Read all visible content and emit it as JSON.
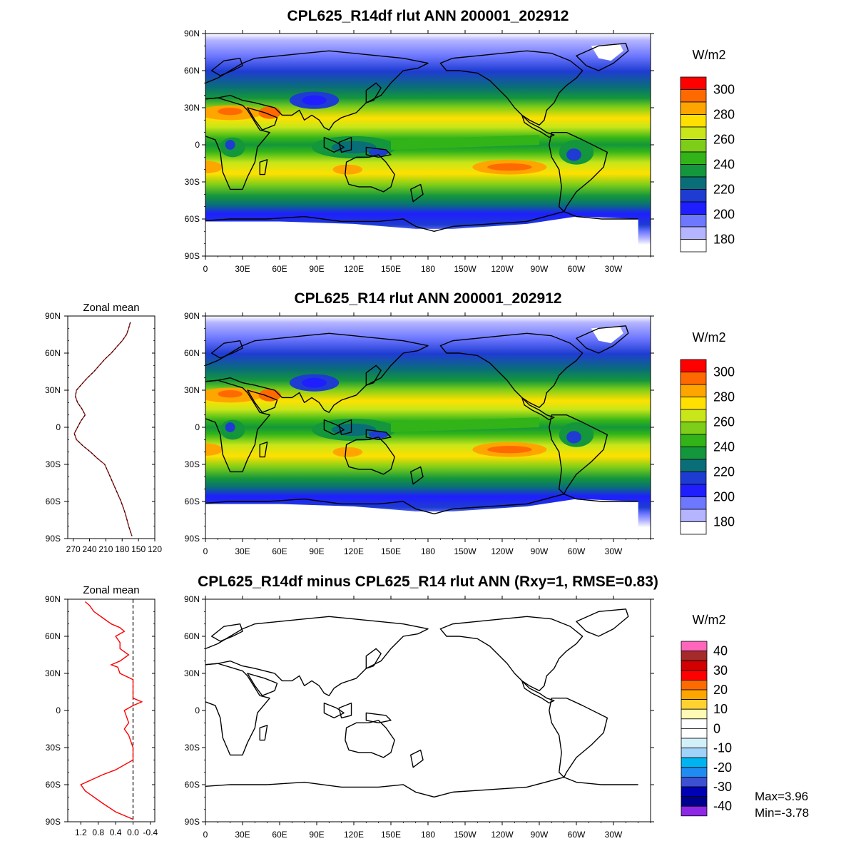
{
  "panels": [
    {
      "id": "top",
      "title": "CPL625_R14df rlut ANN 200001_202912",
      "units": "W/m2",
      "colorbar": {
        "colors": [
          "#ff0000",
          "#ff6a00",
          "#ffa500",
          "#ffe000",
          "#c8e619",
          "#7dcd19",
          "#32b419",
          "#14963c",
          "#0a6e78",
          "#1e3cd2",
          "#1e1eff",
          "#6e78ff",
          "#b4b4ff",
          "#ffffff"
        ],
        "labels": [
          "300",
          "280",
          "260",
          "240",
          "220",
          "200",
          "180"
        ]
      }
    },
    {
      "id": "middle",
      "title": "CPL625_R14 rlut ANN 200001_202912",
      "units": "W/m2",
      "colorbar": {
        "colors": [
          "#ff0000",
          "#ff6a00",
          "#ffa500",
          "#ffe000",
          "#c8e619",
          "#7dcd19",
          "#32b419",
          "#14963c",
          "#0a6e78",
          "#1e3cd2",
          "#1e1eff",
          "#6e78ff",
          "#b4b4ff",
          "#ffffff"
        ],
        "labels": [
          "300",
          "280",
          "260",
          "240",
          "220",
          "200",
          "180"
        ]
      },
      "zonal_mean": {
        "title": "Zonal mean",
        "x_ticks": [
          "270",
          "240",
          "210",
          "180",
          "150",
          "120"
        ]
      }
    },
    {
      "id": "bottom",
      "title": "CPL625_R14df minus CPL625_R14 rlut ANN (Rxy=1, RMSE=0.83)",
      "units": "W/m2",
      "colorbar": {
        "colors": [
          "#ff66bb",
          "#a52a2a",
          "#d20000",
          "#ff0000",
          "#ff6a00",
          "#ffa500",
          "#ffd232",
          "#fffab4",
          "#ffffff",
          "#ffffff",
          "#d2f0fa",
          "#a0d2fa",
          "#00b4f0",
          "#1e8cf0",
          "#3c50d2",
          "#0000b4",
          "#000090",
          "#8c28e6"
        ],
        "labels": [
          "40",
          "30",
          "20",
          "10",
          "0",
          "-10",
          "-20",
          "-30",
          "-40"
        ]
      },
      "zonal_mean": {
        "title": "Zonal mean",
        "x_ticks": [
          "1.2",
          "0.8",
          "0.4",
          "0.0",
          "-0.4"
        ]
      },
      "stats": {
        "max": "Max=3.96",
        "min": "Min=-3.78"
      }
    }
  ],
  "lat_ticks": [
    "90N",
    "60N",
    "30N",
    "0",
    "30S",
    "60S",
    "90S"
  ],
  "lon_ticks": [
    "0",
    "30E",
    "60E",
    "90E",
    "120E",
    "150E",
    "180",
    "150W",
    "120W",
    "90W",
    "60W",
    "30W"
  ],
  "chart_data": [
    {
      "type": "line",
      "title": "Zonal mean",
      "series": [
        {
          "x": [
            165,
            168,
            172,
            180,
            190,
            200,
            212,
            222,
            232,
            244,
            254,
            264,
            266,
            262,
            254,
            248,
            256,
            262,
            268,
            264,
            252,
            238,
            226,
            212,
            202,
            192,
            182,
            174,
            168,
            162
          ],
          "y": [
            85,
            80,
            75,
            70,
            65,
            60,
            55,
            50,
            45,
            40,
            35,
            30,
            25,
            20,
            15,
            10,
            5,
            0,
            -5,
            -10,
            -15,
            -20,
            -25,
            -30,
            -40,
            -50,
            -60,
            -70,
            -80,
            -88
          ]
        }
      ],
      "ylim": [
        -90,
        90
      ],
      "xlim": [
        280,
        120
      ]
    },
    {
      "type": "line",
      "title": "Zonal mean",
      "series": [
        {
          "x": [
            1.1,
            1.0,
            0.9,
            0.7,
            0.5,
            0.3,
            0.2,
            0.4,
            0.3,
            0.3,
            0.1,
            0.3,
            0.5,
            0.35,
            0.3,
            0.0,
            0.0,
            0.0,
            -0.2,
            0.0,
            0.2,
            0.15,
            0.1,
            0.2,
            0.1,
            0.0,
            0.0,
            0.4,
            0.7,
            1.2,
            1.1,
            0.7,
            0.4,
            0.0
          ],
          "y": [
            88,
            85,
            80,
            75,
            70,
            67,
            64,
            60,
            55,
            50,
            45,
            40,
            37,
            35,
            30,
            25,
            15,
            10,
            7,
            4,
            0,
            -5,
            -10,
            -15,
            -20,
            -30,
            -40,
            -48,
            -52,
            -60,
            -65,
            -75,
            -82,
            -88
          ]
        }
      ],
      "ylim": [
        -90,
        90
      ],
      "xlim": [
        1.5,
        -0.5
      ]
    }
  ]
}
